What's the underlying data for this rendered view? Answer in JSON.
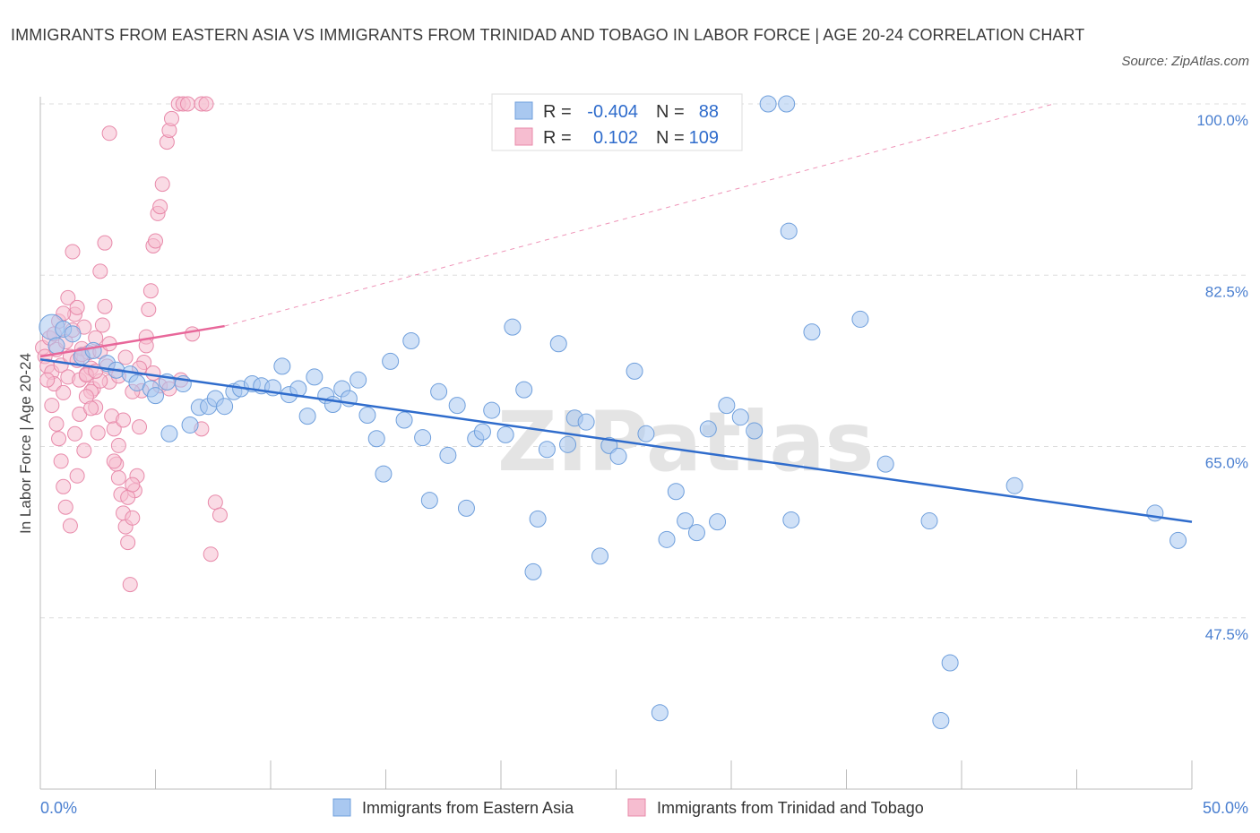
{
  "header": {
    "title": "IMMIGRANTS FROM EASTERN ASIA VS IMMIGRANTS FROM TRINIDAD AND TOBAGO IN LABOR FORCE | AGE 20-24 CORRELATION CHART",
    "source": "Source: ZipAtlas.com"
  },
  "watermark": "ZIPatlas",
  "stats": {
    "series1": {
      "r_label": "R =",
      "r_value": "-0.404",
      "n_label": "N =",
      "n_value": "88"
    },
    "series2": {
      "r_label": "R =",
      "r_value": "0.102",
      "n_label": "N =",
      "n_value": "109"
    }
  },
  "legend": {
    "series1": "Immigrants from Eastern Asia",
    "series2": "Immigrants from Trinidad and Tobago"
  },
  "colors": {
    "blue_fill": "#a9c8f0",
    "blue_stroke": "#6f9fdc",
    "blue_line": "#2f6ccc",
    "pink_fill": "#f6bdd0",
    "pink_stroke": "#e88aaa",
    "pink_line": "#e8679a",
    "grid": "#dddddd",
    "axis": "#bbbbbb",
    "tick_text": "#4a7fd0"
  },
  "chart_data": {
    "type": "scatter",
    "xlabel": "",
    "ylabel": "In Labor Force | Age 20-24",
    "xlim": [
      0,
      50
    ],
    "ylim": [
      30,
      100
    ],
    "x_tick_labels": [
      "0.0%",
      "50.0%"
    ],
    "y_ticks": [
      47.5,
      65.0,
      82.5,
      100.0
    ],
    "y_tick_labels": [
      "47.5%",
      "65.0%",
      "82.5%",
      "100.0%"
    ],
    "grid": true,
    "series": [
      {
        "name": "Immigrants from Eastern Asia",
        "color": "#a9c8f0",
        "trend": {
          "x": [
            0,
            50
          ],
          "y": [
            73.9,
            57.3
          ]
        },
        "points": [
          [
            0.5,
            77.2
          ],
          [
            1.0,
            77.0
          ],
          [
            1.4,
            76.5
          ],
          [
            1.8,
            74.2
          ],
          [
            2.3,
            74.8
          ],
          [
            2.9,
            73.5
          ],
          [
            3.3,
            72.8
          ],
          [
            3.9,
            72.4
          ],
          [
            4.2,
            71.5
          ],
          [
            4.8,
            70.9
          ],
          [
            5.0,
            70.2
          ],
          [
            5.5,
            71.6
          ],
          [
            5.6,
            66.3
          ],
          [
            6.2,
            71.4
          ],
          [
            6.5,
            67.2
          ],
          [
            6.9,
            69.0
          ],
          [
            7.3,
            69.1
          ],
          [
            7.6,
            69.9
          ],
          [
            8.0,
            69.1
          ],
          [
            8.4,
            70.6
          ],
          [
            8.7,
            70.9
          ],
          [
            9.2,
            71.4
          ],
          [
            9.6,
            71.2
          ],
          [
            10.1,
            71.0
          ],
          [
            10.5,
            73.2
          ],
          [
            10.8,
            70.3
          ],
          [
            11.2,
            70.9
          ],
          [
            11.6,
            68.1
          ],
          [
            11.9,
            72.1
          ],
          [
            12.4,
            70.2
          ],
          [
            12.7,
            69.3
          ],
          [
            13.1,
            70.9
          ],
          [
            13.4,
            69.9
          ],
          [
            13.8,
            71.8
          ],
          [
            14.2,
            68.2
          ],
          [
            14.6,
            65.8
          ],
          [
            14.9,
            62.2
          ],
          [
            15.2,
            73.7
          ],
          [
            15.8,
            67.7
          ],
          [
            16.1,
            75.8
          ],
          [
            16.6,
            65.9
          ],
          [
            16.9,
            59.5
          ],
          [
            17.3,
            70.6
          ],
          [
            17.7,
            64.1
          ],
          [
            18.1,
            69.2
          ],
          [
            18.5,
            58.7
          ],
          [
            18.9,
            65.8
          ],
          [
            19.2,
            66.5
          ],
          [
            19.6,
            68.7
          ],
          [
            20.2,
            66.2
          ],
          [
            20.5,
            77.2
          ],
          [
            21.0,
            70.8
          ],
          [
            21.4,
            52.2
          ],
          [
            21.6,
            57.6
          ],
          [
            22.0,
            64.7
          ],
          [
            22.5,
            75.5
          ],
          [
            22.9,
            65.2
          ],
          [
            23.2,
            67.9
          ],
          [
            23.7,
            67.5
          ],
          [
            24.3,
            53.8
          ],
          [
            24.7,
            65.1
          ],
          [
            25.1,
            64.0
          ],
          [
            25.8,
            72.7
          ],
          [
            26.3,
            66.3
          ],
          [
            26.9,
            37.8
          ],
          [
            27.2,
            55.5
          ],
          [
            27.6,
            60.4
          ],
          [
            28.0,
            57.4
          ],
          [
            28.5,
            56.2
          ],
          [
            29.0,
            66.8
          ],
          [
            29.4,
            57.3
          ],
          [
            29.8,
            69.2
          ],
          [
            30.4,
            68.0
          ],
          [
            31.0,
            66.6
          ],
          [
            31.6,
            100.0
          ],
          [
            32.4,
            100.0
          ],
          [
            32.5,
            87.0
          ],
          [
            32.6,
            57.5
          ],
          [
            33.5,
            76.7
          ],
          [
            35.6,
            78.0
          ],
          [
            36.7,
            63.2
          ],
          [
            38.6,
            57.4
          ],
          [
            39.1,
            37.0
          ],
          [
            39.5,
            42.9
          ],
          [
            42.3,
            61.0
          ],
          [
            48.4,
            58.2
          ],
          [
            49.4,
            55.4
          ],
          [
            0.7,
            75.3
          ]
        ]
      },
      {
        "name": "Immigrants from Trinidad and Tobago",
        "color": "#f6bdd0",
        "trend": {
          "x": [
            0,
            8
          ],
          "y": [
            74.2,
            77.3
          ]
        },
        "dashed_extension": {
          "x": [
            8,
            44
          ],
          "y": [
            77.3,
            100.0
          ]
        },
        "points": [
          [
            0.1,
            75.1
          ],
          [
            0.2,
            74.2
          ],
          [
            0.3,
            73.2
          ],
          [
            0.4,
            76.1
          ],
          [
            0.5,
            72.6
          ],
          [
            0.6,
            71.4
          ],
          [
            0.7,
            74.9
          ],
          [
            0.8,
            77.8
          ],
          [
            0.9,
            73.3
          ],
          [
            1.0,
            70.5
          ],
          [
            1.1,
            75.7
          ],
          [
            1.2,
            72.1
          ],
          [
            1.3,
            74.2
          ],
          [
            1.4,
            76.9
          ],
          [
            1.5,
            78.5
          ],
          [
            1.6,
            73.8
          ],
          [
            1.7,
            71.8
          ],
          [
            1.8,
            75.0
          ],
          [
            1.9,
            77.2
          ],
          [
            2.0,
            72.4
          ],
          [
            2.1,
            74.6
          ],
          [
            2.2,
            73.0
          ],
          [
            2.3,
            70.9
          ],
          [
            2.4,
            76.1
          ],
          [
            0.3,
            71.8
          ],
          [
            0.5,
            69.2
          ],
          [
            0.7,
            67.3
          ],
          [
            0.8,
            65.8
          ],
          [
            0.9,
            63.5
          ],
          [
            1.0,
            60.9
          ],
          [
            1.1,
            58.8
          ],
          [
            1.3,
            56.9
          ],
          [
            1.5,
            66.3
          ],
          [
            1.6,
            62.0
          ],
          [
            1.7,
            68.3
          ],
          [
            1.9,
            64.6
          ],
          [
            2.0,
            72.3
          ],
          [
            2.2,
            70.6
          ],
          [
            2.4,
            69.0
          ],
          [
            2.5,
            66.4
          ],
          [
            2.6,
            74.7
          ],
          [
            2.7,
            77.4
          ],
          [
            2.8,
            79.3
          ],
          [
            2.9,
            73.2
          ],
          [
            3.0,
            71.6
          ],
          [
            3.1,
            68.1
          ],
          [
            3.2,
            66.8
          ],
          [
            3.3,
            63.2
          ],
          [
            3.4,
            61.8
          ],
          [
            3.5,
            60.1
          ],
          [
            3.6,
            58.2
          ],
          [
            3.7,
            56.8
          ],
          [
            3.8,
            55.2
          ],
          [
            3.9,
            50.9
          ],
          [
            4.0,
            57.7
          ],
          [
            4.1,
            60.5
          ],
          [
            4.2,
            62.0
          ],
          [
            4.3,
            67.0
          ],
          [
            4.4,
            70.7
          ],
          [
            4.5,
            73.6
          ],
          [
            4.6,
            76.2
          ],
          [
            4.7,
            79.0
          ],
          [
            4.8,
            80.9
          ],
          [
            4.9,
            85.5
          ],
          [
            5.0,
            86.0
          ],
          [
            5.1,
            88.8
          ],
          [
            5.2,
            89.5
          ],
          [
            5.3,
            91.8
          ],
          [
            5.5,
            96.1
          ],
          [
            5.6,
            97.3
          ],
          [
            5.7,
            98.5
          ],
          [
            6.0,
            100.0
          ],
          [
            6.2,
            100.0
          ],
          [
            6.4,
            100.0
          ],
          [
            7.0,
            100.0
          ],
          [
            7.2,
            100.0
          ],
          [
            7.4,
            54.0
          ],
          [
            7.6,
            59.3
          ],
          [
            7.8,
            58.0
          ],
          [
            2.6,
            71.7
          ],
          [
            3.0,
            75.5
          ],
          [
            3.4,
            72.2
          ],
          [
            3.7,
            74.1
          ],
          [
            4.0,
            70.6
          ],
          [
            4.3,
            73.0
          ],
          [
            4.6,
            75.3
          ],
          [
            4.9,
            72.5
          ],
          [
            5.2,
            71.2
          ],
          [
            5.6,
            70.9
          ],
          [
            6.1,
            71.8
          ],
          [
            6.6,
            76.5
          ],
          [
            7.0,
            66.8
          ],
          [
            1.0,
            78.6
          ],
          [
            1.2,
            80.2
          ],
          [
            1.4,
            84.9
          ],
          [
            1.6,
            79.2
          ],
          [
            1.8,
            74.4
          ],
          [
            2.0,
            70.1
          ],
          [
            2.2,
            68.9
          ],
          [
            2.4,
            72.7
          ],
          [
            2.6,
            82.9
          ],
          [
            2.8,
            85.8
          ],
          [
            3.0,
            97.0
          ],
          [
            3.2,
            63.5
          ],
          [
            3.4,
            65.1
          ],
          [
            3.6,
            67.7
          ],
          [
            3.8,
            59.8
          ],
          [
            4.0,
            61.1
          ],
          [
            0.6,
            76.5
          ]
        ]
      }
    ]
  }
}
